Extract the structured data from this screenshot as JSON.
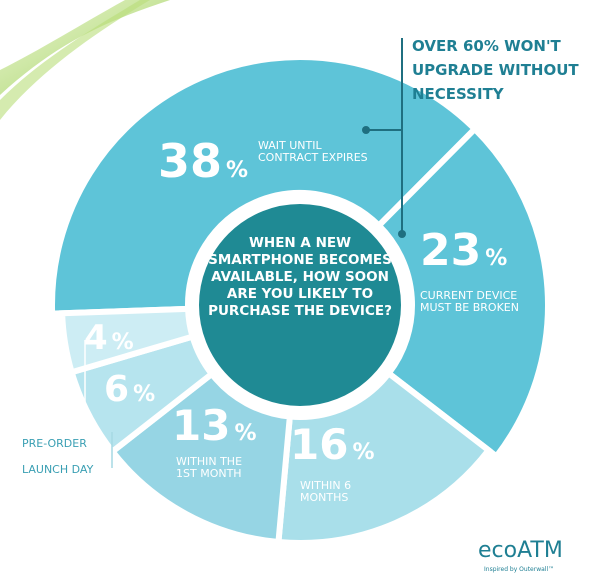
{
  "chart_data": {
    "type": "pie",
    "title": "WHEN A NEW SMARTPHONE BECOMES AVAILABLE, HOW SOON ARE YOU LIKELY TO PURCHASE THE DEVICE?",
    "annotation": "OVER 60% WON'T UPGRADE WITHOUT NECESSITY",
    "unit": "%",
    "categories": [
      "WAIT UNTIL CONTRACT EXPIRES",
      "CURRENT DEVICE MUST BE BROKEN",
      "WITHIN 6 MONTHS",
      "WITHIN THE 1ST MONTH",
      "LAUNCH DAY",
      "PRE-ORDER"
    ],
    "values": [
      38,
      23,
      16,
      13,
      6,
      4
    ],
    "colors": [
      "#5ec4d8",
      "#5ec4d8",
      "#a9dfea",
      "#96d5e4",
      "#b6e4ee",
      "#cdedf4"
    ]
  },
  "brand": {
    "logo": "ecoATM",
    "tagline": "Inspired by Outerwall™"
  }
}
